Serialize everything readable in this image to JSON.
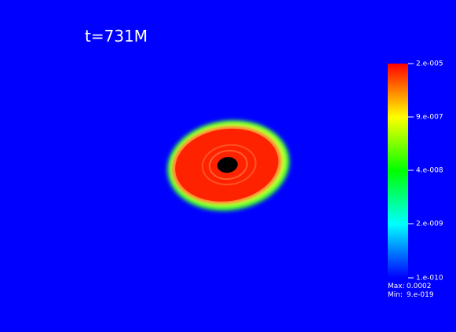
{
  "title": "t=731M",
  "colorbar": {
    "labels": [
      "2.e-005",
      "9.e-007",
      "4.e-008",
      "2.e-009",
      "1.e-010"
    ]
  },
  "range": {
    "max_label": "Max:",
    "max": "0.0002",
    "min_label": "Min:",
    "min": "9.e-019"
  }
}
